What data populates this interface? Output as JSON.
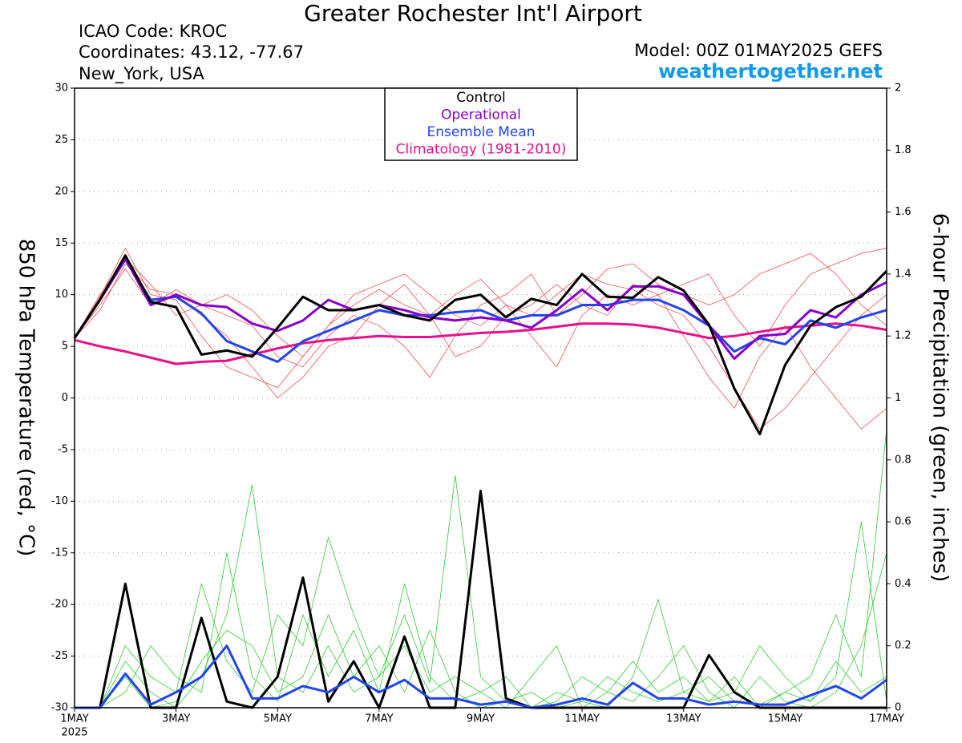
{
  "chart_data": {
    "type": "line",
    "title": "Greater Rochester Int'l Airport",
    "station": [
      "ICAO Code: KROC",
      "Coordinates: 43.12, -77.67",
      "New_York, USA"
    ],
    "model": "Model: 00Z 01MAY2025 GEFS",
    "source": "weathertogether.net",
    "ylabel": "850 hPa Temperature (red, °C)",
    "y2label": "6-hour Precipitation (green, inches)",
    "x_year": "2025",
    "x": [
      0,
      0.5,
      1,
      1.5,
      2,
      2.5,
      3,
      3.5,
      4,
      4.5,
      5,
      5.5,
      6,
      6.5,
      7,
      7.5,
      8,
      8.5,
      9,
      9.5,
      10,
      10.5,
      11,
      11.5,
      12,
      12.5,
      13,
      13.5,
      14,
      14.5,
      15,
      15.5,
      16
    ],
    "xlim": [
      0,
      16
    ],
    "xticks": [
      {
        "value": 0,
        "label": "1MAY"
      },
      {
        "value": 2,
        "label": "3MAY"
      },
      {
        "value": 4,
        "label": "5MAY"
      },
      {
        "value": 6,
        "label": "7MAY"
      },
      {
        "value": 8,
        "label": "9MAY"
      },
      {
        "value": 10,
        "label": "11MAY"
      },
      {
        "value": 12,
        "label": "13MAY"
      },
      {
        "value": 14,
        "label": "15MAY"
      },
      {
        "value": 16,
        "label": "17MAY"
      }
    ],
    "ylim": [
      -30,
      30
    ],
    "yticks": [
      -30,
      -25,
      -20,
      -15,
      -10,
      -5,
      0,
      5,
      10,
      15,
      20,
      25,
      30
    ],
    "y2lim": [
      0,
      2
    ],
    "y2ticks": [
      0,
      0.2,
      0.4,
      0.6,
      0.8,
      1,
      1.2,
      1.4,
      1.6,
      1.8,
      2
    ],
    "grid": true,
    "members": [
      {
        "color": "#f05050",
        "values": [
          5.8,
          9.8,
          14.5,
          10,
          9.5,
          6,
          3,
          2,
          1,
          4,
          7,
          9,
          10.5,
          9,
          8,
          10,
          11.5,
          9,
          8,
          10,
          12,
          11,
          10.5,
          9,
          8,
          5,
          1,
          -3,
          -1,
          2,
          5,
          8,
          10
        ]
      },
      {
        "color": "#f05050",
        "values": [
          5.8,
          9,
          12.5,
          9,
          10.5,
          9,
          8,
          7,
          4,
          3,
          6,
          8,
          7,
          5,
          2,
          6,
          9,
          10,
          12,
          8,
          10,
          12.5,
          13,
          11,
          10,
          9,
          10,
          12,
          13,
          14,
          12,
          9,
          7
        ]
      },
      {
        "color": "#f05050",
        "values": [
          5.8,
          8.5,
          13,
          10.5,
          10,
          8,
          6,
          3,
          0,
          2,
          5,
          6,
          9,
          11,
          8,
          4,
          5,
          8,
          9,
          11,
          9,
          8,
          11,
          10,
          6,
          2,
          -1,
          4,
          7,
          3,
          0,
          -3,
          -1
        ]
      },
      {
        "color": "#f05050",
        "values": [
          5.8,
          10,
          13.5,
          11,
          8,
          9,
          10,
          8.5,
          6,
          4,
          7,
          10,
          11,
          12,
          10,
          8,
          7,
          9,
          6,
          3,
          8,
          10,
          9,
          10,
          11,
          12,
          8,
          5,
          9,
          12,
          13,
          14,
          14.5
        ]
      },
      {
        "color": "#33cc33",
        "axis": "y2",
        "values": [
          0,
          0,
          0.15,
          0.05,
          0,
          0.1,
          0.3,
          0.72,
          0.1,
          0.05,
          0.2,
          0.05,
          0.1,
          0.3,
          0.08,
          0.75,
          0.1,
          0.02,
          0,
          0.05,
          0.02,
          0,
          0.1,
          0.35,
          0.05,
          0.02,
          0.1,
          0,
          0.05,
          0.02,
          0.1,
          0.6,
          0.02
        ]
      },
      {
        "color": "#33cc33",
        "axis": "y2",
        "values": [
          0,
          0,
          0.2,
          0.1,
          0.05,
          0.4,
          0.15,
          0.05,
          0.3,
          0.2,
          0.55,
          0.3,
          0.1,
          0.2,
          0.05,
          0.1,
          0.05,
          0,
          0.1,
          0.2,
          0,
          0.05,
          0.02,
          0.1,
          0.2,
          0.05,
          0,
          0.1,
          0.02,
          0,
          0.05,
          0.2,
          0.5
        ]
      },
      {
        "color": "#33cc33",
        "axis": "y2",
        "values": [
          0,
          0,
          0.05,
          0.2,
          0.1,
          0.05,
          0.5,
          0.1,
          0.02,
          0.3,
          0.1,
          0.25,
          0.05,
          0.4,
          0.1,
          0.02,
          0.05,
          0.1,
          0,
          0.02,
          0.1,
          0.05,
          0.15,
          0.05,
          0.1,
          0.02,
          0.05,
          0.2,
          0.1,
          0.02,
          0.15,
          0.05,
          0.1
        ]
      },
      {
        "color": "#33cc33",
        "axis": "y2",
        "values": [
          0,
          0,
          0.1,
          0,
          0.02,
          0.15,
          0.25,
          0.2,
          0.05,
          0.1,
          0.3,
          0.1,
          0.2,
          0.05,
          0.25,
          0.05,
          0,
          0.02,
          0.05,
          0,
          0.02,
          0.1,
          0.05,
          0.02,
          0.05,
          0.1,
          0.02,
          0.01,
          0.05,
          0.1,
          0.3,
          0.1,
          0.9
        ]
      }
    ],
    "series": [
      {
        "name": "Control",
        "color": "#000000",
        "values": [
          5.8,
          9.5,
          13.8,
          9.3,
          8.8,
          4.2,
          4.6,
          4.0,
          6.8,
          9.8,
          8.5,
          8.5,
          9.0,
          8.0,
          7.5,
          9.5,
          10.0,
          7.8,
          9.6,
          9.0,
          12.0,
          9.8,
          9.7,
          11.7,
          10.4,
          7.1,
          0.9,
          -3.5,
          3.2,
          7.0,
          8.8,
          9.8,
          12.3
        ]
      },
      {
        "name": "Operational",
        "color": "#8800cc",
        "values": [
          5.8,
          9.5,
          13.5,
          9.0,
          10.0,
          9.0,
          8.8,
          7.2,
          6.5,
          7.5,
          9.5,
          8.5,
          9.0,
          8.5,
          7.8,
          7.5,
          7.8,
          7.5,
          6.8,
          8.5,
          10.5,
          8.5,
          10.8,
          10.8,
          10.0,
          7.0,
          3.8,
          6.0,
          6.2,
          8.5,
          7.8,
          10.0,
          11.2
        ]
      },
      {
        "name": "Ensemble Mean",
        "color": "#2244ee",
        "values": [
          5.8,
          9.5,
          13.4,
          9.5,
          9.8,
          8.2,
          5.5,
          4.5,
          3.5,
          5.5,
          6.5,
          7.5,
          8.5,
          8.0,
          8.0,
          8.3,
          8.5,
          7.5,
          8.0,
          8.0,
          9.0,
          9.0,
          9.5,
          9.5,
          8.5,
          7.0,
          4.5,
          5.8,
          5.2,
          7.5,
          6.8,
          7.8,
          8.5
        ]
      },
      {
        "name": "Climatology (1981-2010)",
        "color": "#e8108a",
        "values": [
          5.6,
          5.0,
          4.5,
          3.9,
          3.3,
          3.5,
          3.6,
          4.2,
          4.8,
          5.3,
          5.6,
          5.8,
          6.0,
          5.9,
          5.9,
          6.1,
          6.3,
          6.4,
          6.6,
          6.9,
          7.2,
          7.2,
          7.1,
          6.8,
          6.3,
          5.8,
          6.0,
          6.4,
          6.8,
          7.0,
          7.2,
          7.0,
          6.6
        ]
      },
      {
        "color": "#2244ee",
        "axis": "y2",
        "values": [
          0,
          0,
          0.11,
          0.01,
          0.05,
          0.1,
          0.2,
          0.03,
          0.03,
          0.07,
          0.05,
          0.1,
          0.05,
          0.09,
          0.03,
          0.03,
          0.01,
          0.02,
          0,
          0.01,
          0.03,
          0.01,
          0.08,
          0.03,
          0.03,
          0.01,
          0.02,
          0.01,
          0.01,
          0.04,
          0.07,
          0.03,
          0.09
        ]
      },
      {
        "color": "#000000",
        "axis": "y2",
        "values": [
          0,
          0,
          0.4,
          0,
          0,
          0.29,
          0.02,
          0,
          0.1,
          0.42,
          0.02,
          0.15,
          0,
          0.23,
          0,
          0,
          0.7,
          0.03,
          0,
          0,
          0,
          0,
          0,
          0,
          0,
          0.17,
          0.05,
          0,
          0,
          0,
          0,
          0,
          0
        ]
      }
    ]
  }
}
